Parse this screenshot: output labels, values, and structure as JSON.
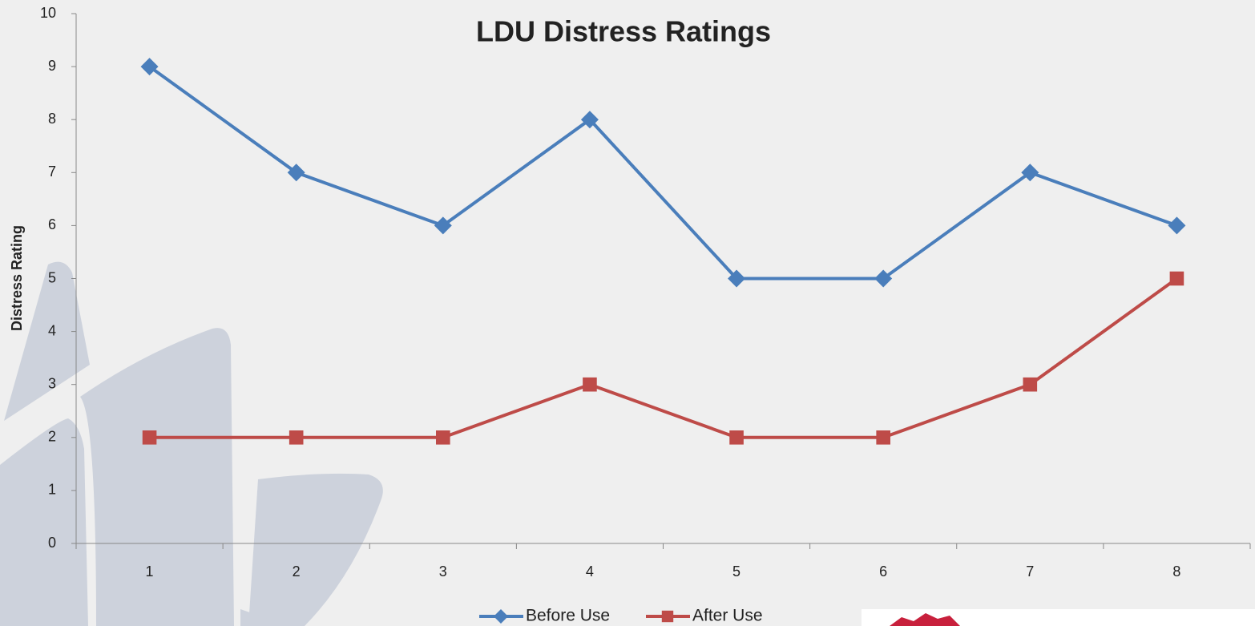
{
  "chart_data": {
    "type": "line",
    "title": "LDU Distress Ratings",
    "y_label": "Distress Rating",
    "categories": [
      "1",
      "2",
      "3",
      "4",
      "5",
      "6",
      "7",
      "8"
    ],
    "series": [
      {
        "name": "Before Use",
        "color": "#4a7ebb",
        "marker": "diamond",
        "values": [
          9,
          7,
          6,
          8,
          5,
          5,
          7,
          6
        ]
      },
      {
        "name": "After Use",
        "color": "#be4b48",
        "marker": "square",
        "values": [
          2,
          2,
          2,
          3,
          2,
          2,
          3,
          5
        ]
      }
    ],
    "ylim": [
      0,
      10
    ],
    "yticks": [
      0,
      1,
      2,
      3,
      4,
      5,
      6,
      7,
      8,
      9,
      10
    ],
    "grid": false,
    "legend": "bottom"
  }
}
